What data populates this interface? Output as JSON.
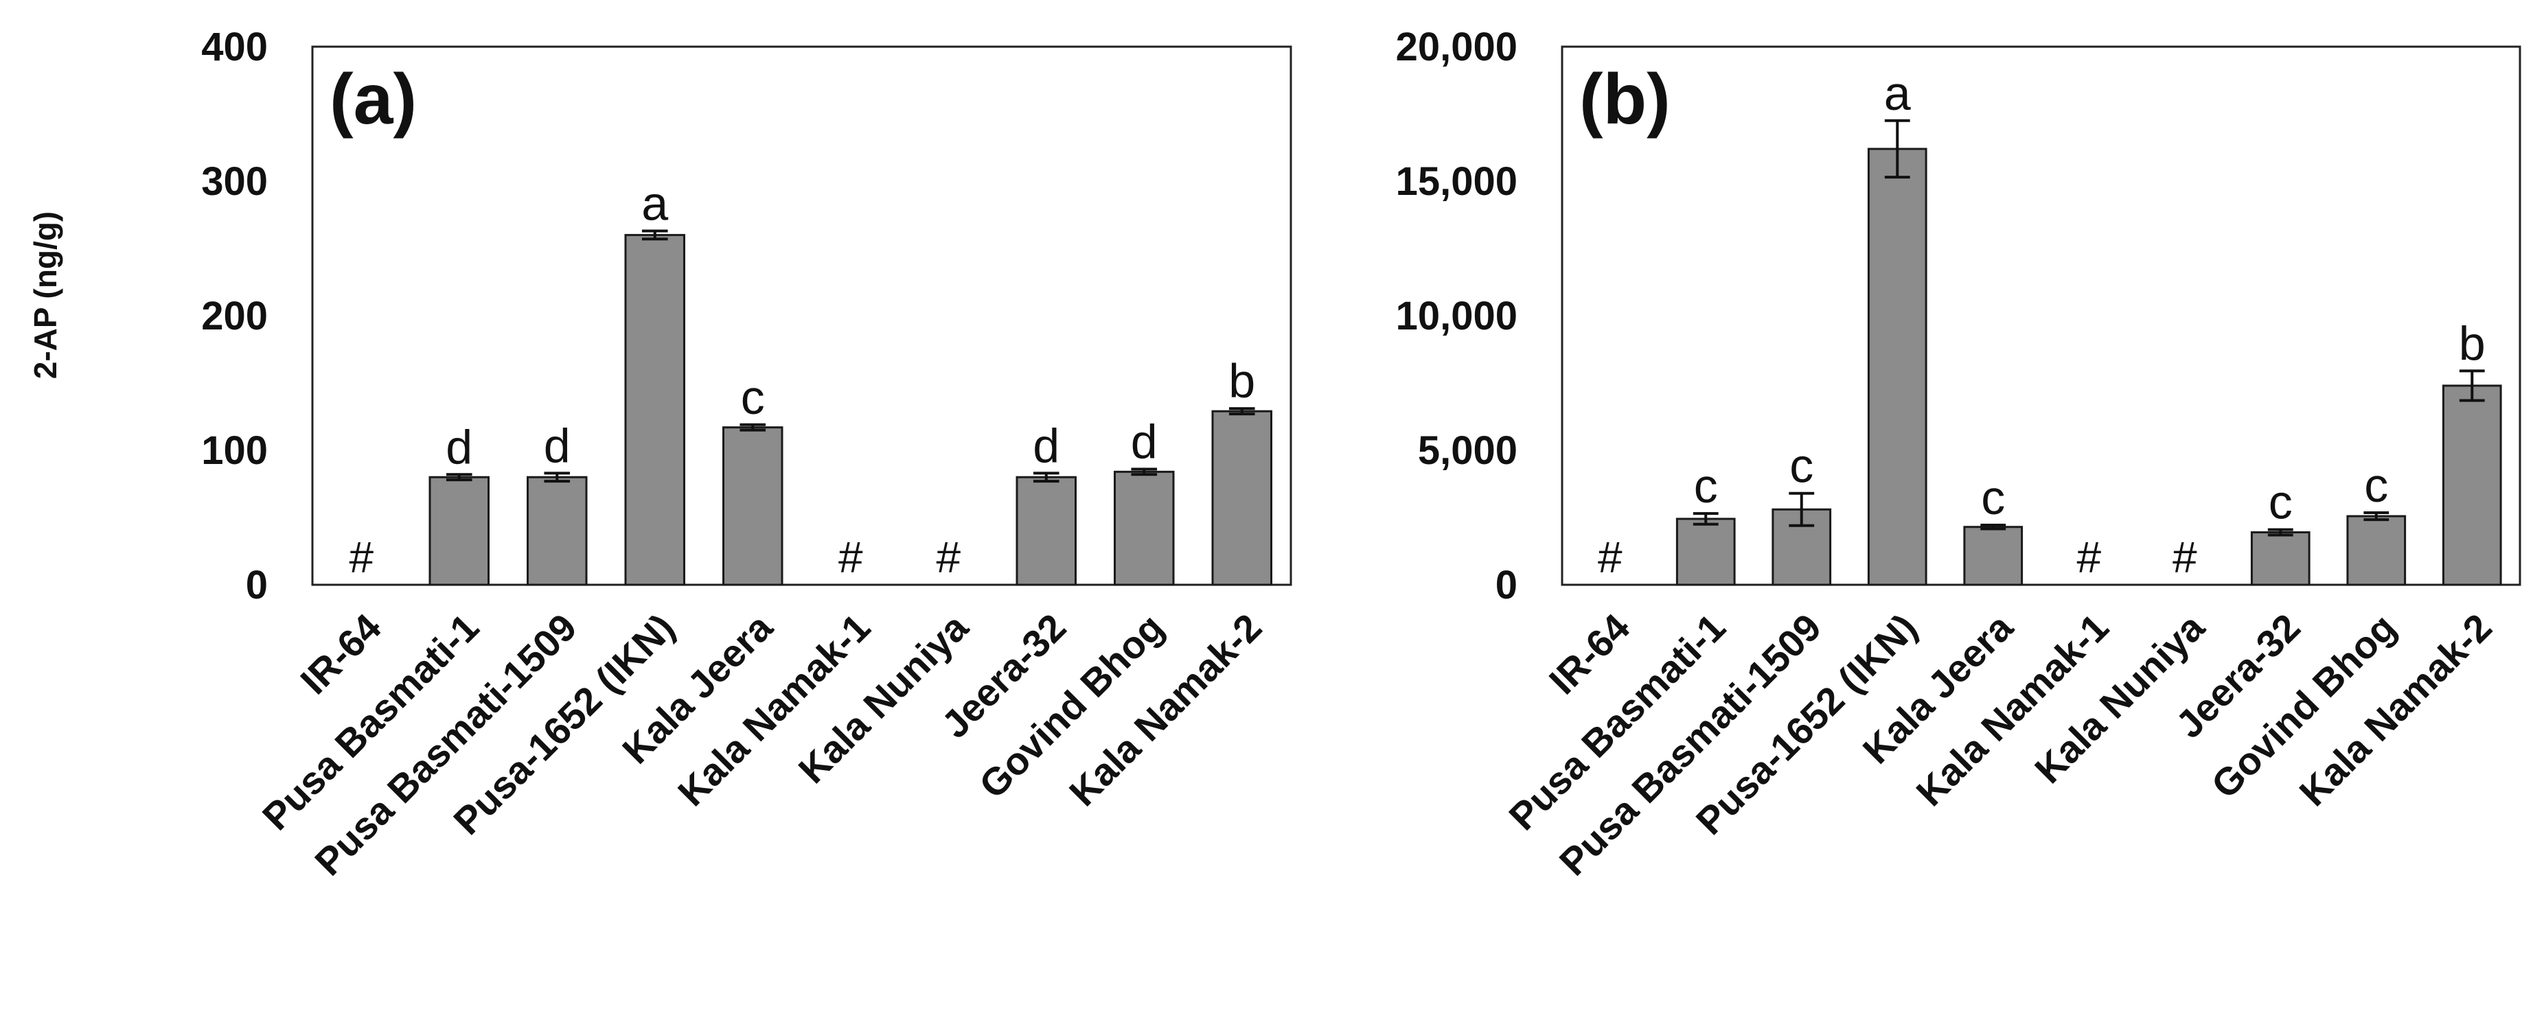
{
  "chart_data": [
    {
      "type": "bar",
      "panel_label": "(a)",
      "ylabel": "2-AP (ng/g)",
      "ylim": [
        0,
        400
      ],
      "yticks": [
        "0",
        "100",
        "200",
        "300",
        "400"
      ],
      "ytick_values": [
        0,
        100,
        200,
        300,
        400
      ],
      "categories": [
        "IR-64",
        "Pusa Basmati-1",
        "Pusa Basmati-1509",
        "Pusa-1652 (IKN)",
        "Kala Jeera",
        "Kala Namak-1",
        "Kala Nuniya",
        "Jeera-32",
        "Govind Bhog",
        "Kala Namak-2"
      ],
      "values": [
        null,
        80,
        80,
        260,
        117,
        null,
        null,
        80,
        84,
        129
      ],
      "errors": [
        0,
        2,
        3,
        3,
        2,
        0,
        0,
        3,
        2,
        2
      ],
      "annotations": [
        "#",
        "d",
        "d",
        "a",
        "c",
        "#",
        "#",
        "d",
        "d",
        "b"
      ]
    },
    {
      "type": "bar",
      "panel_label": "(b)",
      "ylabel": "",
      "ylim": [
        0,
        20000
      ],
      "yticks": [
        "0",
        "5,000",
        "10,000",
        "15,000",
        "20,000"
      ],
      "ytick_values": [
        0,
        5000,
        10000,
        15000,
        20000
      ],
      "categories": [
        "IR-64",
        "Pusa Basmati-1",
        "Pusa Basmati-1509",
        "Pusa-1652 (IKN)",
        "Kala Jeera",
        "Kala Namak-1",
        "Kala Nuniya",
        "Jeera-32",
        "Govind Bhog",
        "Kala Namak-2"
      ],
      "values": [
        null,
        2450,
        2800,
        16200,
        2150,
        null,
        null,
        1950,
        2550,
        7400
      ],
      "errors": [
        0,
        200,
        600,
        1050,
        70,
        0,
        0,
        100,
        130,
        550
      ],
      "annotations": [
        "#",
        "c",
        "c",
        "a",
        "c",
        "#",
        "#",
        "c",
        "c",
        "b"
      ]
    }
  ]
}
